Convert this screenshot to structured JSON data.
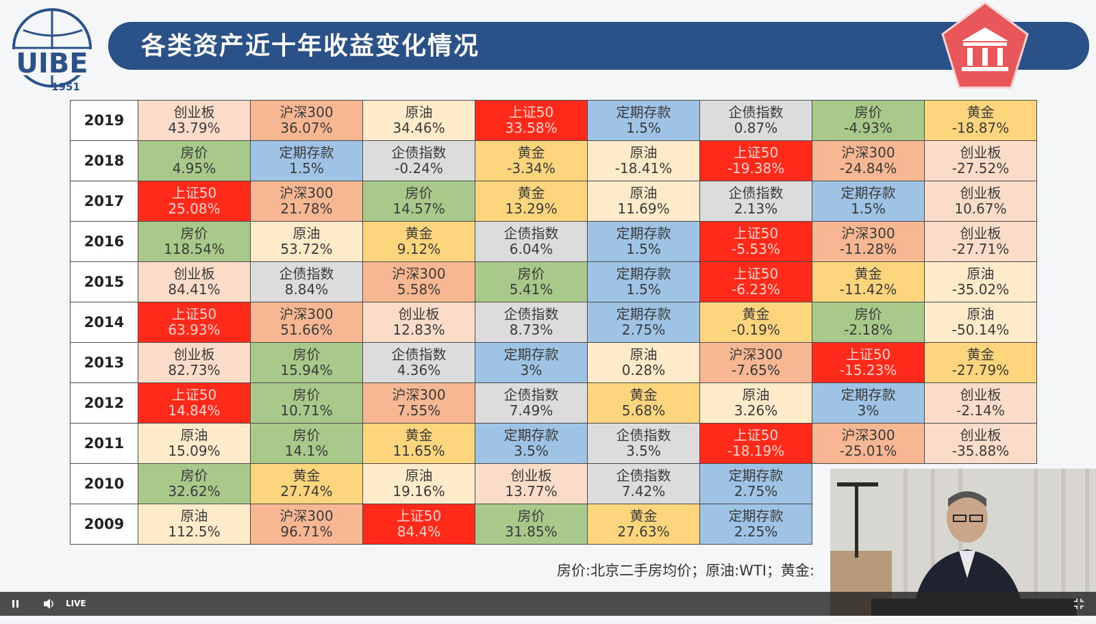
{
  "header": {
    "title": "各类资产近十年收益变化情况",
    "logo_text": "UIBE",
    "logo_year": "1951"
  },
  "colors": {
    "title_bar": "#2b5189",
    "badge": "#e8585b",
    "上证50": "#ff2a1a",
    "沪深300": "#f7b792",
    "原油": "#fdebc9",
    "创业板": "#fbdcc9",
    "定期存款": "#9fc3e4",
    "企债指数": "#dcdcdc",
    "房价": "#a8c989",
    "黄金": "#fcd57c"
  },
  "table": {
    "rows": [
      {
        "year": "2019",
        "cells": [
          {
            "asset": "创业板",
            "value": "43.79%"
          },
          {
            "asset": "沪深300",
            "value": "36.07%"
          },
          {
            "asset": "原油",
            "value": "34.46%"
          },
          {
            "asset": "上证50",
            "value": "33.58%"
          },
          {
            "asset": "定期存款",
            "value": "1.5%"
          },
          {
            "asset": "企债指数",
            "value": "0.87%"
          },
          {
            "asset": "房价",
            "value": "-4.93%"
          },
          {
            "asset": "黄金",
            "value": "-18.87%"
          }
        ]
      },
      {
        "year": "2018",
        "cells": [
          {
            "asset": "房价",
            "value": "4.95%"
          },
          {
            "asset": "定期存款",
            "value": "1.5%"
          },
          {
            "asset": "企债指数",
            "value": "-0.24%"
          },
          {
            "asset": "黄金",
            "value": "-3.34%"
          },
          {
            "asset": "原油",
            "value": "-18.41%"
          },
          {
            "asset": "上证50",
            "value": "-19.38%"
          },
          {
            "asset": "沪深300",
            "value": "-24.84%"
          },
          {
            "asset": "创业板",
            "value": "-27.52%"
          }
        ]
      },
      {
        "year": "2017",
        "cells": [
          {
            "asset": "上证50",
            "value": "25.08%"
          },
          {
            "asset": "沪深300",
            "value": "21.78%"
          },
          {
            "asset": "房价",
            "value": "14.57%"
          },
          {
            "asset": "黄金",
            "value": "13.29%"
          },
          {
            "asset": "原油",
            "value": "11.69%"
          },
          {
            "asset": "企债指数",
            "value": "2.13%"
          },
          {
            "asset": "定期存款",
            "value": "1.5%"
          },
          {
            "asset": "创业板",
            "value": "10.67%"
          }
        ]
      },
      {
        "year": "2016",
        "cells": [
          {
            "asset": "房价",
            "value": "118.54%"
          },
          {
            "asset": "原油",
            "value": "53.72%"
          },
          {
            "asset": "黄金",
            "value": "9.12%"
          },
          {
            "asset": "企债指数",
            "value": "6.04%"
          },
          {
            "asset": "定期存款",
            "value": "1.5%"
          },
          {
            "asset": "上证50",
            "value": "-5.53%"
          },
          {
            "asset": "沪深300",
            "value": "-11.28%"
          },
          {
            "asset": "创业板",
            "value": "-27.71%"
          }
        ]
      },
      {
        "year": "2015",
        "cells": [
          {
            "asset": "创业板",
            "value": "84.41%"
          },
          {
            "asset": "企债指数",
            "value": "8.84%"
          },
          {
            "asset": "沪深300",
            "value": "5.58%"
          },
          {
            "asset": "房价",
            "value": "5.41%"
          },
          {
            "asset": "定期存款",
            "value": "1.5%"
          },
          {
            "asset": "上证50",
            "value": "-6.23%"
          },
          {
            "asset": "黄金",
            "value": "-11.42%"
          },
          {
            "asset": "原油",
            "value": "-35.02%"
          }
        ]
      },
      {
        "year": "2014",
        "cells": [
          {
            "asset": "上证50",
            "value": "63.93%"
          },
          {
            "asset": "沪深300",
            "value": "51.66%"
          },
          {
            "asset": "创业板",
            "value": "12.83%"
          },
          {
            "asset": "企债指数",
            "value": "8.73%"
          },
          {
            "asset": "定期存款",
            "value": "2.75%"
          },
          {
            "asset": "黄金",
            "value": "-0.19%"
          },
          {
            "asset": "房价",
            "value": "-2.18%"
          },
          {
            "asset": "原油",
            "value": "-50.14%"
          }
        ]
      },
      {
        "year": "2013",
        "cells": [
          {
            "asset": "创业板",
            "value": "82.73%"
          },
          {
            "asset": "房价",
            "value": "15.94%"
          },
          {
            "asset": "企债指数",
            "value": "4.36%"
          },
          {
            "asset": "定期存款",
            "value": "3%"
          },
          {
            "asset": "原油",
            "value": "0.28%"
          },
          {
            "asset": "沪深300",
            "value": "-7.65%"
          },
          {
            "asset": "上证50",
            "value": "-15.23%"
          },
          {
            "asset": "黄金",
            "value": "-27.79%"
          }
        ]
      },
      {
        "year": "2012",
        "cells": [
          {
            "asset": "上证50",
            "value": "14.84%"
          },
          {
            "asset": "房价",
            "value": "10.71%"
          },
          {
            "asset": "沪深300",
            "value": "7.55%"
          },
          {
            "asset": "企债指数",
            "value": "7.49%"
          },
          {
            "asset": "黄金",
            "value": "5.68%"
          },
          {
            "asset": "原油",
            "value": "3.26%"
          },
          {
            "asset": "定期存款",
            "value": "3%"
          },
          {
            "asset": "创业板",
            "value": "-2.14%"
          }
        ]
      },
      {
        "year": "2011",
        "cells": [
          {
            "asset": "原油",
            "value": "15.09%"
          },
          {
            "asset": "房价",
            "value": "14.1%"
          },
          {
            "asset": "黄金",
            "value": "11.65%"
          },
          {
            "asset": "定期存款",
            "value": "3.5%"
          },
          {
            "asset": "企债指数",
            "value": "3.5%"
          },
          {
            "asset": "上证50",
            "value": "-18.19%"
          },
          {
            "asset": "沪深300",
            "value": "-25.01%"
          },
          {
            "asset": "创业板",
            "value": "-35.88%"
          }
        ]
      },
      {
        "year": "2010",
        "cells": [
          {
            "asset": "房价",
            "value": "32.62%"
          },
          {
            "asset": "黄金",
            "value": "27.74%"
          },
          {
            "asset": "原油",
            "value": "19.16%"
          },
          {
            "asset": "创业板",
            "value": "13.77%"
          },
          {
            "asset": "企债指数",
            "value": "7.42%"
          },
          {
            "asset": "定期存款",
            "value": "2.75%"
          },
          {
            "asset": "",
            "value": ""
          },
          {
            "asset": "",
            "value": ""
          }
        ]
      },
      {
        "year": "2009",
        "cells": [
          {
            "asset": "原油",
            "value": "112.5%"
          },
          {
            "asset": "沪深300",
            "value": "96.71%"
          },
          {
            "asset": "上证50",
            "value": "84.4%"
          },
          {
            "asset": "房价",
            "value": "31.85%"
          },
          {
            "asset": "黄金",
            "value": "27.63%"
          },
          {
            "asset": "定期存款",
            "value": "2.25%"
          },
          {
            "asset": "",
            "value": ""
          },
          {
            "asset": "",
            "value": ""
          }
        ]
      }
    ]
  },
  "footnote": "房价:北京二手房均价；原油:WTI；黄金:",
  "player": {
    "play_state": "pause",
    "live_label": "LIVE",
    "icons": [
      "pause-icon",
      "volume-icon",
      "exit-fullscreen-icon"
    ]
  }
}
